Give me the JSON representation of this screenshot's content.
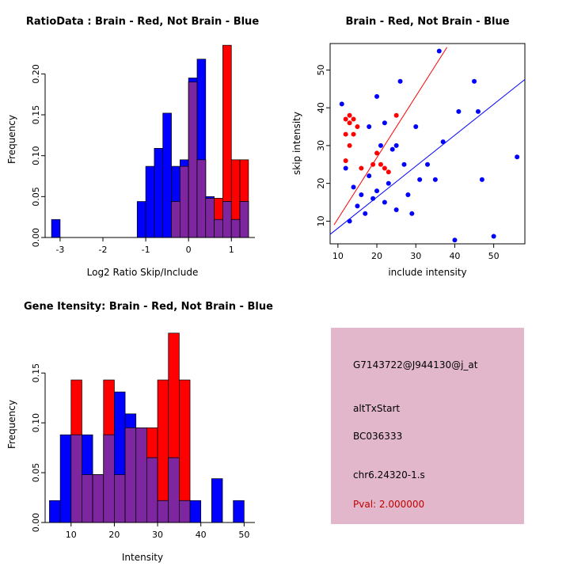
{
  "colors": {
    "brain_red": "#FF0000",
    "not_brain_blue": "#0000FF",
    "overlap_purple": "#7D26A0",
    "info_panel_bg": "#E2B7CB",
    "pval_red": "#C00000",
    "axis_black": "#000000"
  },
  "chart_data": [
    {
      "type": "bar",
      "panel": "top-left",
      "title": "RatioData : Brain - Red, Not Brain - Blue",
      "xlabel": "Log2 Ratio Skip/Include",
      "ylabel": "Frequency",
      "xlim": [
        -3.35,
        1.55
      ],
      "ylim": [
        0,
        0.24
      ],
      "xticks": [
        -3,
        -2,
        -1,
        0,
        1
      ],
      "xtick_labels": [
        "-3",
        "-2",
        "-1",
        "0",
        "1"
      ],
      "yticks": [
        0,
        0.05,
        0.1,
        0.15,
        0.2
      ],
      "ytick_labels": [
        "0.00",
        "0.05",
        "0.10",
        "0.15",
        "0.20"
      ],
      "bin_width": 0.2,
      "legend_meaning": {
        "red": "Brain",
        "blue": "Not Brain"
      },
      "bins": [
        {
          "x": -3.2,
          "blue": 0.022,
          "red": 0
        },
        {
          "x": -1.2,
          "blue": 0.044,
          "red": 0
        },
        {
          "x": -1.0,
          "blue": 0.087,
          "red": 0
        },
        {
          "x": -0.8,
          "blue": 0.109,
          "red": 0
        },
        {
          "x": -0.6,
          "blue": 0.152,
          "red": 0
        },
        {
          "x": -0.4,
          "blue": 0.087,
          "red": 0.044
        },
        {
          "x": -0.2,
          "blue": 0.095,
          "red": 0.087
        },
        {
          "x": 0.0,
          "blue": 0.195,
          "red": 0.19
        },
        {
          "x": 0.2,
          "blue": 0.218,
          "red": 0.095
        },
        {
          "x": 0.4,
          "blue": 0.05,
          "red": 0.048
        },
        {
          "x": 0.6,
          "blue": 0.022,
          "red": 0.048
        },
        {
          "x": 0.8,
          "blue": 0.044,
          "red": 0.235
        },
        {
          "x": 1.0,
          "blue": 0.022,
          "red": 0.095
        },
        {
          "x": 1.2,
          "blue": 0.044,
          "red": 0.095
        }
      ]
    },
    {
      "type": "scatter",
      "panel": "top-right",
      "title": "Brain - Red, Not Brain - Blue",
      "xlabel": "include intensity",
      "ylabel": "skip intensity",
      "xlim": [
        8,
        58
      ],
      "ylim": [
        4,
        57
      ],
      "xticks": [
        10,
        20,
        30,
        40,
        50
      ],
      "xtick_labels": [
        "10",
        "20",
        "30",
        "40",
        "50"
      ],
      "yticks": [
        10,
        20,
        30,
        40,
        50
      ],
      "ytick_labels": [
        "10",
        "20",
        "30",
        "40",
        "50"
      ],
      "frame": "box",
      "series": [
        {
          "name": "Not Brain",
          "color_key": "not_brain_blue",
          "trend_line": {
            "x1": 8,
            "y1": 6.5,
            "x2": 58,
            "y2": 47.5
          },
          "points": [
            [
              11,
              41
            ],
            [
              20,
              43
            ],
            [
              26,
              47
            ],
            [
              36,
              55
            ],
            [
              41,
              39
            ],
            [
              45,
              47
            ],
            [
              46,
              39
            ],
            [
              56,
              27
            ],
            [
              13,
              10
            ],
            [
              14,
              19
            ],
            [
              15,
              14
            ],
            [
              16,
              17
            ],
            [
              17,
              12
            ],
            [
              18,
              22
            ],
            [
              19,
              16
            ],
            [
              20,
              18
            ],
            [
              21,
              30
            ],
            [
              22,
              15
            ],
            [
              22,
              36
            ],
            [
              23,
              20
            ],
            [
              24,
              29
            ],
            [
              25,
              13
            ],
            [
              25,
              30
            ],
            [
              27,
              25
            ],
            [
              28,
              17
            ],
            [
              29,
              12
            ],
            [
              30,
              35
            ],
            [
              31,
              21
            ],
            [
              33,
              25
            ],
            [
              35,
              21
            ],
            [
              37,
              31
            ],
            [
              40,
              5
            ],
            [
              50,
              6
            ],
            [
              12,
              24
            ],
            [
              18,
              35
            ],
            [
              47,
              21
            ]
          ]
        },
        {
          "name": "Brain",
          "color_key": "brain_red",
          "trend_line": {
            "x1": 9,
            "y1": 9,
            "x2": 38,
            "y2": 56
          },
          "points": [
            [
              12,
              37
            ],
            [
              13,
              38
            ],
            [
              13,
              36
            ],
            [
              14,
              37
            ],
            [
              15,
              35
            ],
            [
              12,
              33
            ],
            [
              14,
              33
            ],
            [
              13,
              30
            ],
            [
              12,
              26
            ],
            [
              16,
              24
            ],
            [
              19,
              25
            ],
            [
              20,
              28
            ],
            [
              21,
              25
            ],
            [
              22,
              24
            ],
            [
              23,
              23
            ],
            [
              25,
              38
            ]
          ]
        }
      ]
    },
    {
      "type": "bar",
      "panel": "bottom-left",
      "title": "Gene Itensity: Brain - Red, Not Brain - Blue",
      "xlabel": "Intensity",
      "ylabel": "Frequency",
      "xlim": [
        4,
        52.5
      ],
      "ylim": [
        0,
        0.197
      ],
      "xticks": [
        10,
        20,
        30,
        40,
        50
      ],
      "xtick_labels": [
        "10",
        "20",
        "30",
        "40",
        "50"
      ],
      "yticks": [
        0,
        0.05,
        0.1,
        0.15
      ],
      "ytick_labels": [
        "0.00",
        "0.05",
        "0.10",
        "0.15"
      ],
      "bin_width": 2.5,
      "legend_meaning": {
        "red": "Brain",
        "blue": "Not Brain"
      },
      "bins": [
        {
          "x": 5,
          "blue": 0.022,
          "red": 0
        },
        {
          "x": 7.5,
          "blue": 0.088,
          "red": 0
        },
        {
          "x": 10,
          "blue": 0.088,
          "red": 0.143
        },
        {
          "x": 12.5,
          "blue": 0.088,
          "red": 0.048
        },
        {
          "x": 15,
          "blue": 0.048,
          "red": 0.048
        },
        {
          "x": 17.5,
          "blue": 0.088,
          "red": 0.143
        },
        {
          "x": 20,
          "blue": 0.131,
          "red": 0.048
        },
        {
          "x": 22.5,
          "blue": 0.109,
          "red": 0.095
        },
        {
          "x": 25,
          "blue": 0.095,
          "red": 0.095
        },
        {
          "x": 27.5,
          "blue": 0.065,
          "red": 0.095
        },
        {
          "x": 30,
          "blue": 0.022,
          "red": 0.143
        },
        {
          "x": 32.5,
          "blue": 0.065,
          "red": 0.19
        },
        {
          "x": 35,
          "blue": 0.022,
          "red": 0.143
        },
        {
          "x": 37.5,
          "blue": 0.022,
          "red": 0
        },
        {
          "x": 42.5,
          "blue": 0.044,
          "red": 0
        },
        {
          "x": 47.5,
          "blue": 0.022,
          "red": 0
        }
      ]
    }
  ],
  "info_panel": {
    "lines": [
      "G7143722@J944130@j_at",
      "altTxStart",
      "BC036333",
      "chr6.24320-1.s",
      "Pval: 2.000000"
    ]
  }
}
